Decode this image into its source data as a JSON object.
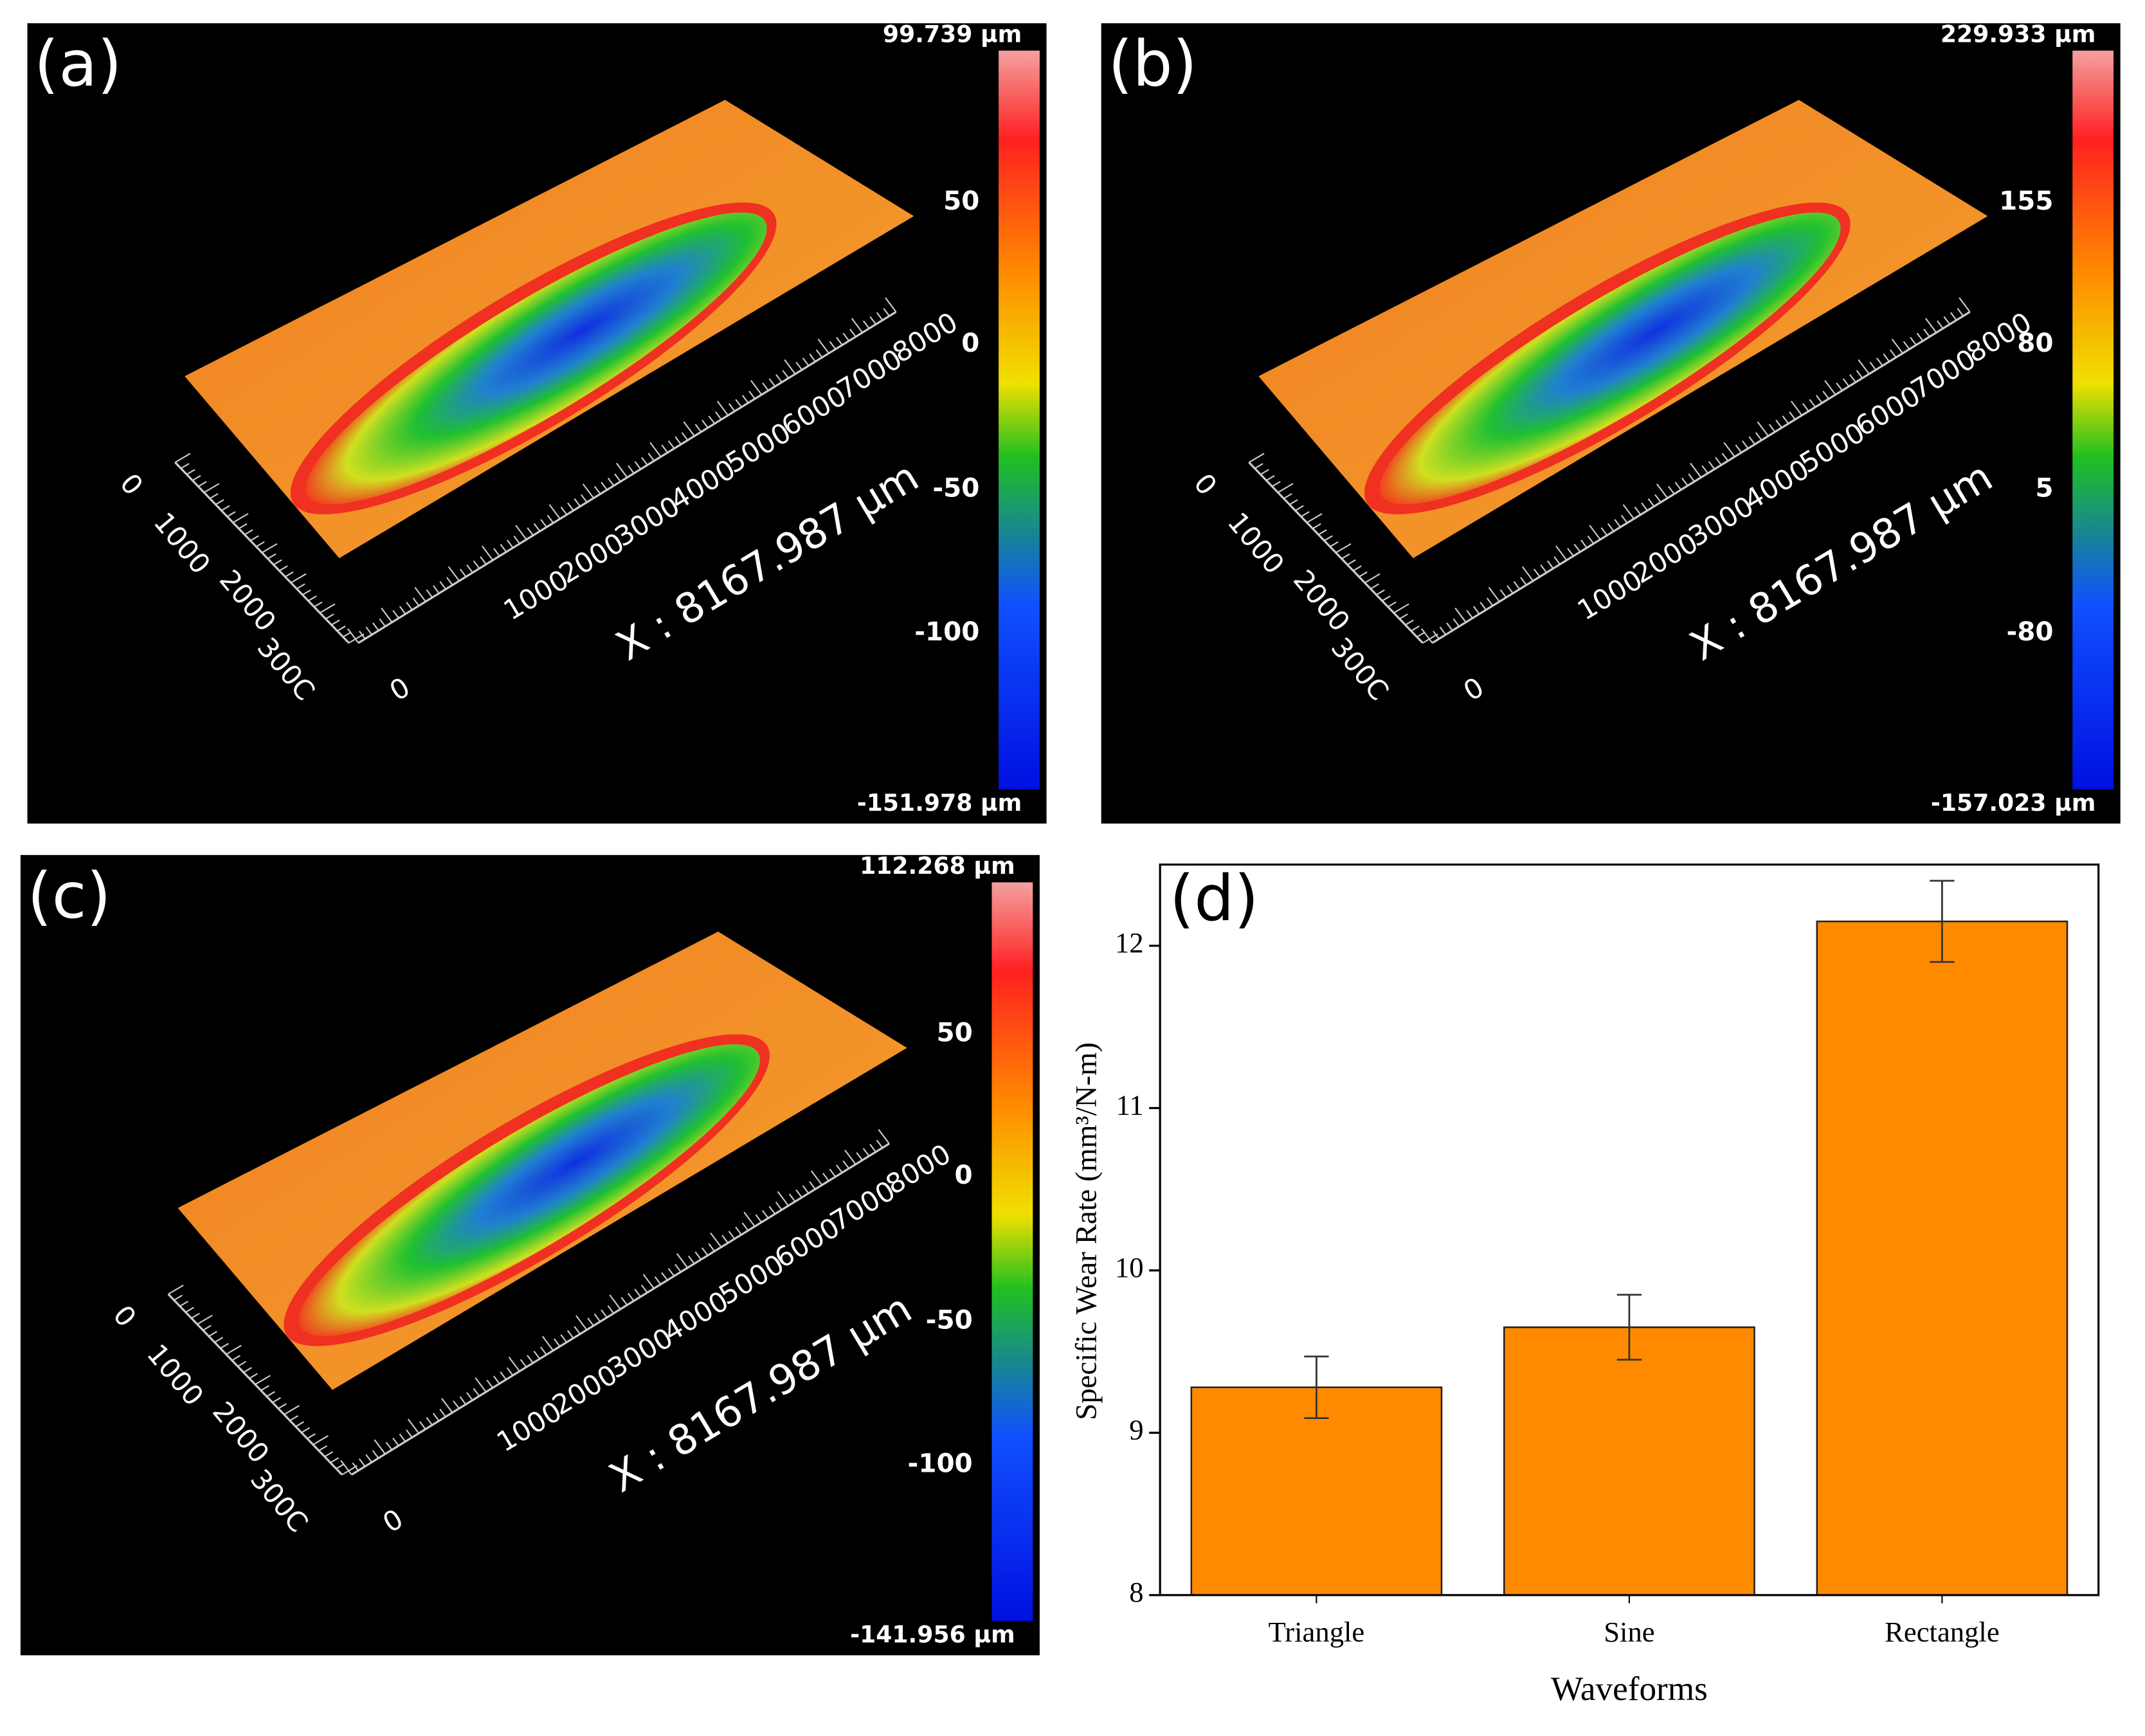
{
  "surface_panels": [
    {
      "label": "(a)",
      "colorbar_labels": [
        "99.739 µm",
        "50",
        "0",
        "-50",
        "-100",
        "-151.978 µm"
      ],
      "y_axis_labels": [
        "0",
        "1000",
        "2000",
        "300C"
      ],
      "x_axis_labels": [
        "0",
        "1000",
        "2000",
        "3000",
        "4000",
        "5000",
        "6000",
        "7000",
        "8000"
      ],
      "x_title": "X : 8167.987 µm"
    },
    {
      "label": "(b)",
      "colorbar_labels": [
        "229.933 µm",
        "155",
        "80",
        "5",
        "-80",
        "-157.023 µm"
      ],
      "y_axis_labels": [
        "0",
        "1000",
        "2000",
        "300C"
      ],
      "x_axis_labels": [
        "0",
        "1000",
        "2000",
        "3000",
        "4000",
        "5000",
        "6000",
        "7000",
        "8000"
      ],
      "x_title": "X : 8167.987 µm"
    },
    {
      "label": "(c)",
      "colorbar_labels": [
        "112.268 µm",
        "50",
        "0",
        "-50",
        "-100",
        "-141.956 µm"
      ],
      "y_axis_labels": [
        "0",
        "1000",
        "2000",
        "300C"
      ],
      "x_axis_labels": [
        "0",
        "1000",
        "2000",
        "3000",
        "4000",
        "5000",
        "6000",
        "7000",
        "8000"
      ],
      "x_title": "X : 8167.987 µm"
    }
  ],
  "chart_data": {
    "type": "bar",
    "panel_label": "(d)",
    "x_label": "Waveforms",
    "y_label": "Specific Wear Rate (mm³/N-m)",
    "categories": [
      "Triangle",
      "Sine",
      "Rectangle"
    ],
    "values": [
      9.28,
      9.65,
      12.15
    ],
    "errors": [
      0.19,
      0.2,
      0.25
    ],
    "color": "#ff8a00",
    "ylim": [
      8,
      12.5
    ],
    "yticks": [
      8,
      9,
      10,
      11,
      12
    ]
  }
}
